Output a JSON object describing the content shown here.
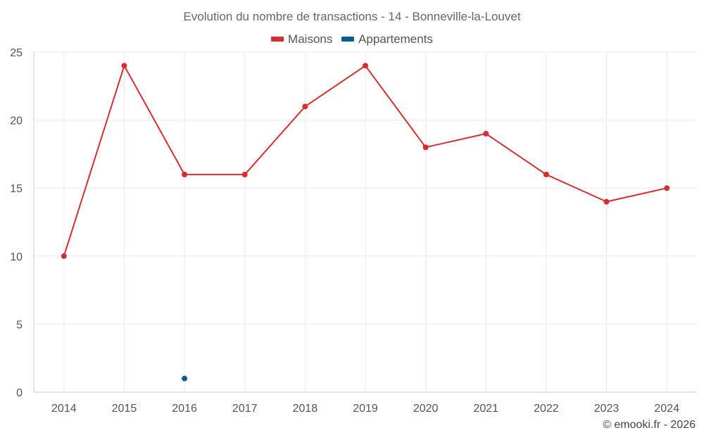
{
  "chart_data": {
    "type": "line",
    "title": "Evolution du nombre de transactions - 14 - Bonneville-la-Louvet",
    "categories": [
      "2014",
      "2015",
      "2016",
      "2017",
      "2018",
      "2019",
      "2020",
      "2021",
      "2022",
      "2023",
      "2024"
    ],
    "series": [
      {
        "name": "Maisons",
        "color": "#d32f2f",
        "values": [
          10,
          24,
          16,
          16,
          21,
          24,
          18,
          19,
          16,
          14,
          15
        ]
      },
      {
        "name": "Appartements",
        "color": "#0d5c91",
        "values": [
          null,
          null,
          1,
          null,
          null,
          null,
          null,
          null,
          null,
          null,
          null
        ]
      }
    ],
    "ylim": [
      0,
      25
    ],
    "yticks": [
      0,
      5,
      10,
      15,
      20,
      25
    ],
    "grid": true,
    "legend_position": "top-center"
  },
  "footer": {
    "copyright": "© emooki.fr - 2026"
  }
}
